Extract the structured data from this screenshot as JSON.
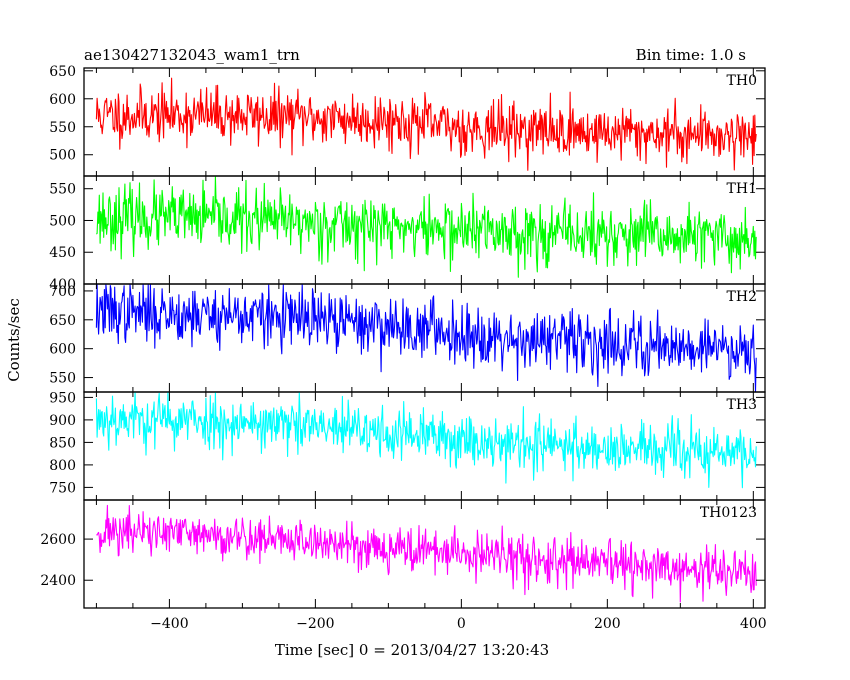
{
  "header": {
    "title": "ae130427132043_wam1_trn",
    "bin_time": "Bin time: 1.0 s"
  },
  "chart_data": {
    "type": "line",
    "xlabel": "Time [sec] 0 = 2013/04/27 13:20:43",
    "ylabel": "Counts/sec",
    "xlim": [
      -517,
      416
    ],
    "x_range": [
      -500,
      404
    ],
    "x_ticks": [
      -400,
      -200,
      0,
      200,
      400
    ],
    "x_tick_labels": [
      "−400",
      "−200",
      "0",
      "200",
      "400"
    ],
    "panels": [
      {
        "name": "TH0",
        "color": "#ff0000",
        "ylim": [
          462,
          655
        ],
        "y_ticks": [
          500,
          550,
          600,
          650
        ],
        "y_tick_labels": [
          "500",
          "550",
          "600",
          "650"
        ],
        "trend": [
          [
            -500,
            570
          ],
          [
            -350,
            572
          ],
          [
            -100,
            562
          ],
          [
            0,
            548
          ],
          [
            200,
            540
          ],
          [
            404,
            535
          ]
        ],
        "noise": 24,
        "seed": 11
      },
      {
        "name": "TH1",
        "color": "#00ff00",
        "ylim": [
          400,
          570
        ],
        "y_ticks": [
          400,
          450,
          500,
          550
        ],
        "y_tick_labels": [
          "400",
          "450",
          "500",
          "550"
        ],
        "trend": [
          [
            -500,
            505
          ],
          [
            -300,
            502
          ],
          [
            -100,
            490
          ],
          [
            100,
            480
          ],
          [
            404,
            470
          ]
        ],
        "noise": 24,
        "seed": 23
      },
      {
        "name": "TH2",
        "color": "#0000ff",
        "ylim": [
          525,
          712
        ],
        "y_ticks": [
          550,
          600,
          650,
          700
        ],
        "y_tick_labels": [
          "550",
          "600",
          "650",
          "700"
        ],
        "trend": [
          [
            -500,
            665
          ],
          [
            -300,
            658
          ],
          [
            -100,
            640
          ],
          [
            100,
            615
          ],
          [
            300,
            605
          ],
          [
            404,
            600
          ]
        ],
        "noise": 26,
        "seed": 37
      },
      {
        "name": "TH3",
        "color": "#00ffff",
        "ylim": [
          722,
          962
        ],
        "y_ticks": [
          750,
          800,
          850,
          900,
          950
        ],
        "y_tick_labels": [
          "750",
          "800",
          "850",
          "900",
          "950"
        ],
        "trend": [
          [
            -500,
            905
          ],
          [
            -300,
            895
          ],
          [
            -100,
            870
          ],
          [
            100,
            845
          ],
          [
            300,
            830
          ],
          [
            404,
            825
          ]
        ],
        "noise": 30,
        "seed": 53
      },
      {
        "name": "TH0123",
        "color": "#ff00ff",
        "ylim": [
          2265,
          2790
        ],
        "y_ticks": [
          2400,
          2600
        ],
        "y_tick_labels": [
          "2400",
          "2600"
        ],
        "trend": [
          [
            -500,
            2640
          ],
          [
            -300,
            2610
          ],
          [
            -100,
            2560
          ],
          [
            100,
            2500
          ],
          [
            300,
            2450
          ],
          [
            404,
            2440
          ]
        ],
        "noise": 55,
        "seed": 71
      }
    ]
  }
}
